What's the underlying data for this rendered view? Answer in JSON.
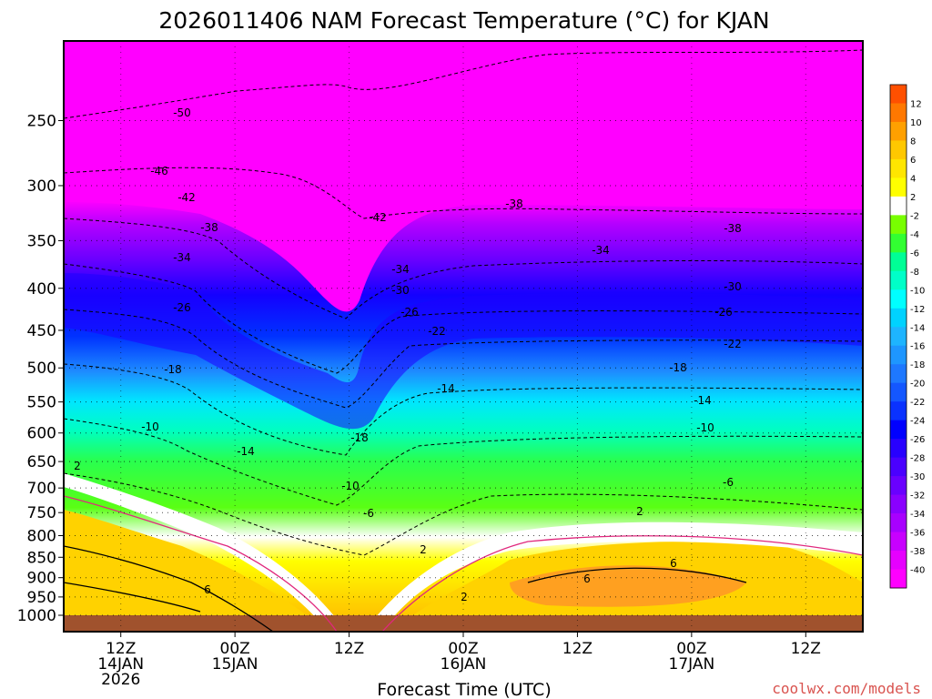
{
  "page": {
    "title": "2026011406 NAM Forecast Temperature (°C) for KJAN",
    "credit": "coolwx.com/models",
    "credit_color": "#d9534f"
  },
  "chart_data": {
    "type": "heatmap",
    "title": "2026011406 NAM Forecast Temperature (°C) for KJAN",
    "xlabel": "Forecast Time (UTC)",
    "ylabel": "",
    "y_axis": {
      "scale": "pressure (mb)",
      "inverted": true,
      "ticks": [
        250,
        300,
        350,
        400,
        450,
        500,
        550,
        600,
        650,
        700,
        750,
        800,
        850,
        900,
        950,
        1000
      ],
      "range": [
        200,
        1000
      ]
    },
    "x_axis": {
      "range_hours": [
        6,
        90
      ],
      "ticks": [
        {
          "hour": 12,
          "lines": [
            "12Z",
            "14JAN",
            "2026"
          ]
        },
        {
          "hour": 24,
          "lines": [
            "00Z",
            "15JAN"
          ]
        },
        {
          "hour": 36,
          "lines": [
            "12Z",
            ""
          ]
        },
        {
          "hour": 48,
          "lines": [
            "00Z",
            "16JAN"
          ]
        },
        {
          "hour": 60,
          "lines": [
            "12Z",
            ""
          ]
        },
        {
          "hour": 72,
          "lines": [
            "00Z",
            "17JAN"
          ]
        },
        {
          "hour": 84,
          "lines": [
            "12Z",
            ""
          ]
        }
      ]
    },
    "grid": true,
    "colorbar": {
      "position": "right",
      "levels": [
        -40,
        -38,
        -36,
        -34,
        -32,
        -30,
        -28,
        -26,
        -24,
        -22,
        -20,
        -18,
        -16,
        -14,
        -12,
        -10,
        -8,
        -6,
        -4,
        -2,
        2,
        4,
        6,
        8,
        10,
        12
      ],
      "colors": [
        "#ff00ff",
        "#e600ff",
        "#c800ff",
        "#a800ff",
        "#8a00ff",
        "#6a00ff",
        "#4a00ff",
        "#2800ff",
        "#0000ff",
        "#0a32ff",
        "#1457ff",
        "#1e78ff",
        "#1e96ff",
        "#1eb4ff",
        "#00d2ff",
        "#00ffff",
        "#00ffc8",
        "#00ff96",
        "#32ff32",
        "#78ff00",
        "#ffffff",
        "#ffff00",
        "#ffe600",
        "#ffc800",
        "#ffa000",
        "#ff7800",
        "#ff5000"
      ]
    },
    "contour_labels": {
      "cold": [
        "-50",
        "-46",
        "-42",
        "-42",
        "-38",
        "-38",
        "-38",
        "-34",
        "-34",
        "-34",
        "-30",
        "-30",
        "-26",
        "-26",
        "-26",
        "-22",
        "-22",
        "-18",
        "-18",
        "-18",
        "-14",
        "-14",
        "-14",
        "-10",
        "-10",
        "-10",
        "-6",
        "-6"
      ],
      "warm": [
        "2",
        "2",
        "2",
        "2",
        "6",
        "6",
        "6"
      ]
    },
    "ground_color": "#a0522d"
  }
}
